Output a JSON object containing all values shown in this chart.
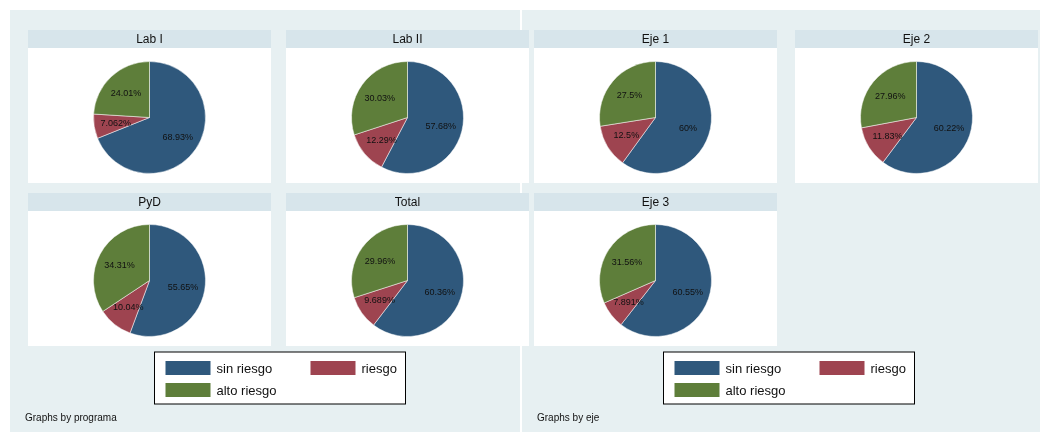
{
  "chart_data": [
    {
      "type": "pie",
      "title": "Lab I",
      "categories": [
        null,
        null,
        null
      ],
      "values": [
        68.93,
        7.062,
        24.01
      ],
      "value_labels": [
        "68.93%",
        "7.062%",
        "24.01%"
      ],
      "colors": [
        "#2f587c",
        "#9e4450",
        "#5e7e3a"
      ]
    },
    {
      "type": "pie",
      "title": "Lab II",
      "categories": [
        null,
        null,
        null
      ],
      "values": [
        57.68,
        12.29,
        30.03
      ],
      "value_labels": [
        "57.68%",
        "12.29%",
        "30.03%"
      ],
      "colors": [
        "#2f587c",
        "#9e4450",
        "#5e7e3a"
      ]
    },
    {
      "type": "pie",
      "title": "Eje 1",
      "categories": [
        null,
        null,
        null
      ],
      "values": [
        60,
        12.5,
        27.5
      ],
      "value_labels": [
        "60%",
        "12.5%",
        "27.5%"
      ],
      "colors": [
        "#2f587c",
        "#9e4450",
        "#5e7e3a"
      ]
    },
    {
      "type": "pie",
      "title": "Eje 2",
      "categories": [
        null,
        null,
        null
      ],
      "values": [
        60.22,
        11.83,
        27.96
      ],
      "value_labels": [
        "60.22%",
        "11.83%",
        "27.96%"
      ],
      "colors": [
        "#2f587c",
        "#9e4450",
        "#5e7e3a"
      ]
    },
    {
      "type": "pie",
      "title": "PyD",
      "categories": [
        null,
        null,
        null
      ],
      "values": [
        55.65,
        10.04,
        34.31
      ],
      "value_labels": [
        "55.65%",
        "10.04%",
        "34.31%"
      ],
      "colors": [
        "#2f587c",
        "#9e4450",
        "#5e7e3a"
      ]
    },
    {
      "type": "pie",
      "title": "Total",
      "categories": [
        "sin riesgo",
        "riesgo",
        "alto riesgo"
      ],
      "values": [
        60.36,
        9.689,
        29.96
      ],
      "value_labels": [
        "60.36%",
        "9.689%",
        "29.96%"
      ],
      "colors": [
        "#2f587c",
        "#9e4450",
        "#5e7e3a"
      ],
      "legend": "bottom",
      "annotations": [
        "Graphs by programa"
      ]
    },
    {
      "type": "pie",
      "title": "Eje 3",
      "categories": [
        "sin riesgo",
        "riesgo",
        "alto riesgo"
      ],
      "values": [
        60.55,
        7.891,
        31.56
      ],
      "value_labels": [
        "60.55%",
        "7.891%",
        "31.56%"
      ],
      "colors": [
        "#2f587c",
        "#9e4450",
        "#5e7e3a"
      ],
      "legend": "bottom",
      "annotations": [
        "Graphs by eje"
      ]
    }
  ]
}
